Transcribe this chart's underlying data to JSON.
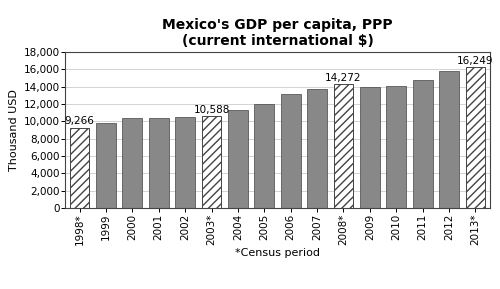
{
  "years": [
    "1998*",
    "1999",
    "2000",
    "2001",
    "2002",
    "2003*",
    "2004",
    "2005",
    "2006",
    "2007",
    "2008*",
    "2009",
    "2010",
    "2011",
    "2012",
    "2013*"
  ],
  "values": [
    9266,
    9836,
    10417,
    10424,
    10459,
    10588,
    11289,
    12054,
    13133,
    13778,
    14272,
    13967,
    14108,
    14724,
    15832,
    16249
  ],
  "striped": [
    true,
    false,
    false,
    false,
    false,
    true,
    false,
    false,
    false,
    false,
    true,
    false,
    false,
    false,
    false,
    true
  ],
  "annotations": {
    "0": "9,266",
    "5": "10,588",
    "10": "14,272",
    "15": "16,249"
  },
  "title_line1": "Mexico's GDP per capita, PPP",
  "title_line2": "(current international $)",
  "ylabel": "Thousand USD",
  "xlabel": "*Census period",
  "ylim": [
    0,
    18000
  ],
  "yticks": [
    0,
    2000,
    4000,
    6000,
    8000,
    10000,
    12000,
    14000,
    16000,
    18000
  ],
  "ytick_labels": [
    "0",
    "2,000",
    "4,000",
    "6,000",
    "8,000",
    "10,000",
    "12,000",
    "14,000",
    "16,000",
    "18,000"
  ],
  "bar_color": "#888888",
  "background_color": "#ffffff",
  "title_fontsize": 10,
  "axis_label_fontsize": 8,
  "tick_fontsize": 7.5,
  "annot_fontsize": 7.5
}
